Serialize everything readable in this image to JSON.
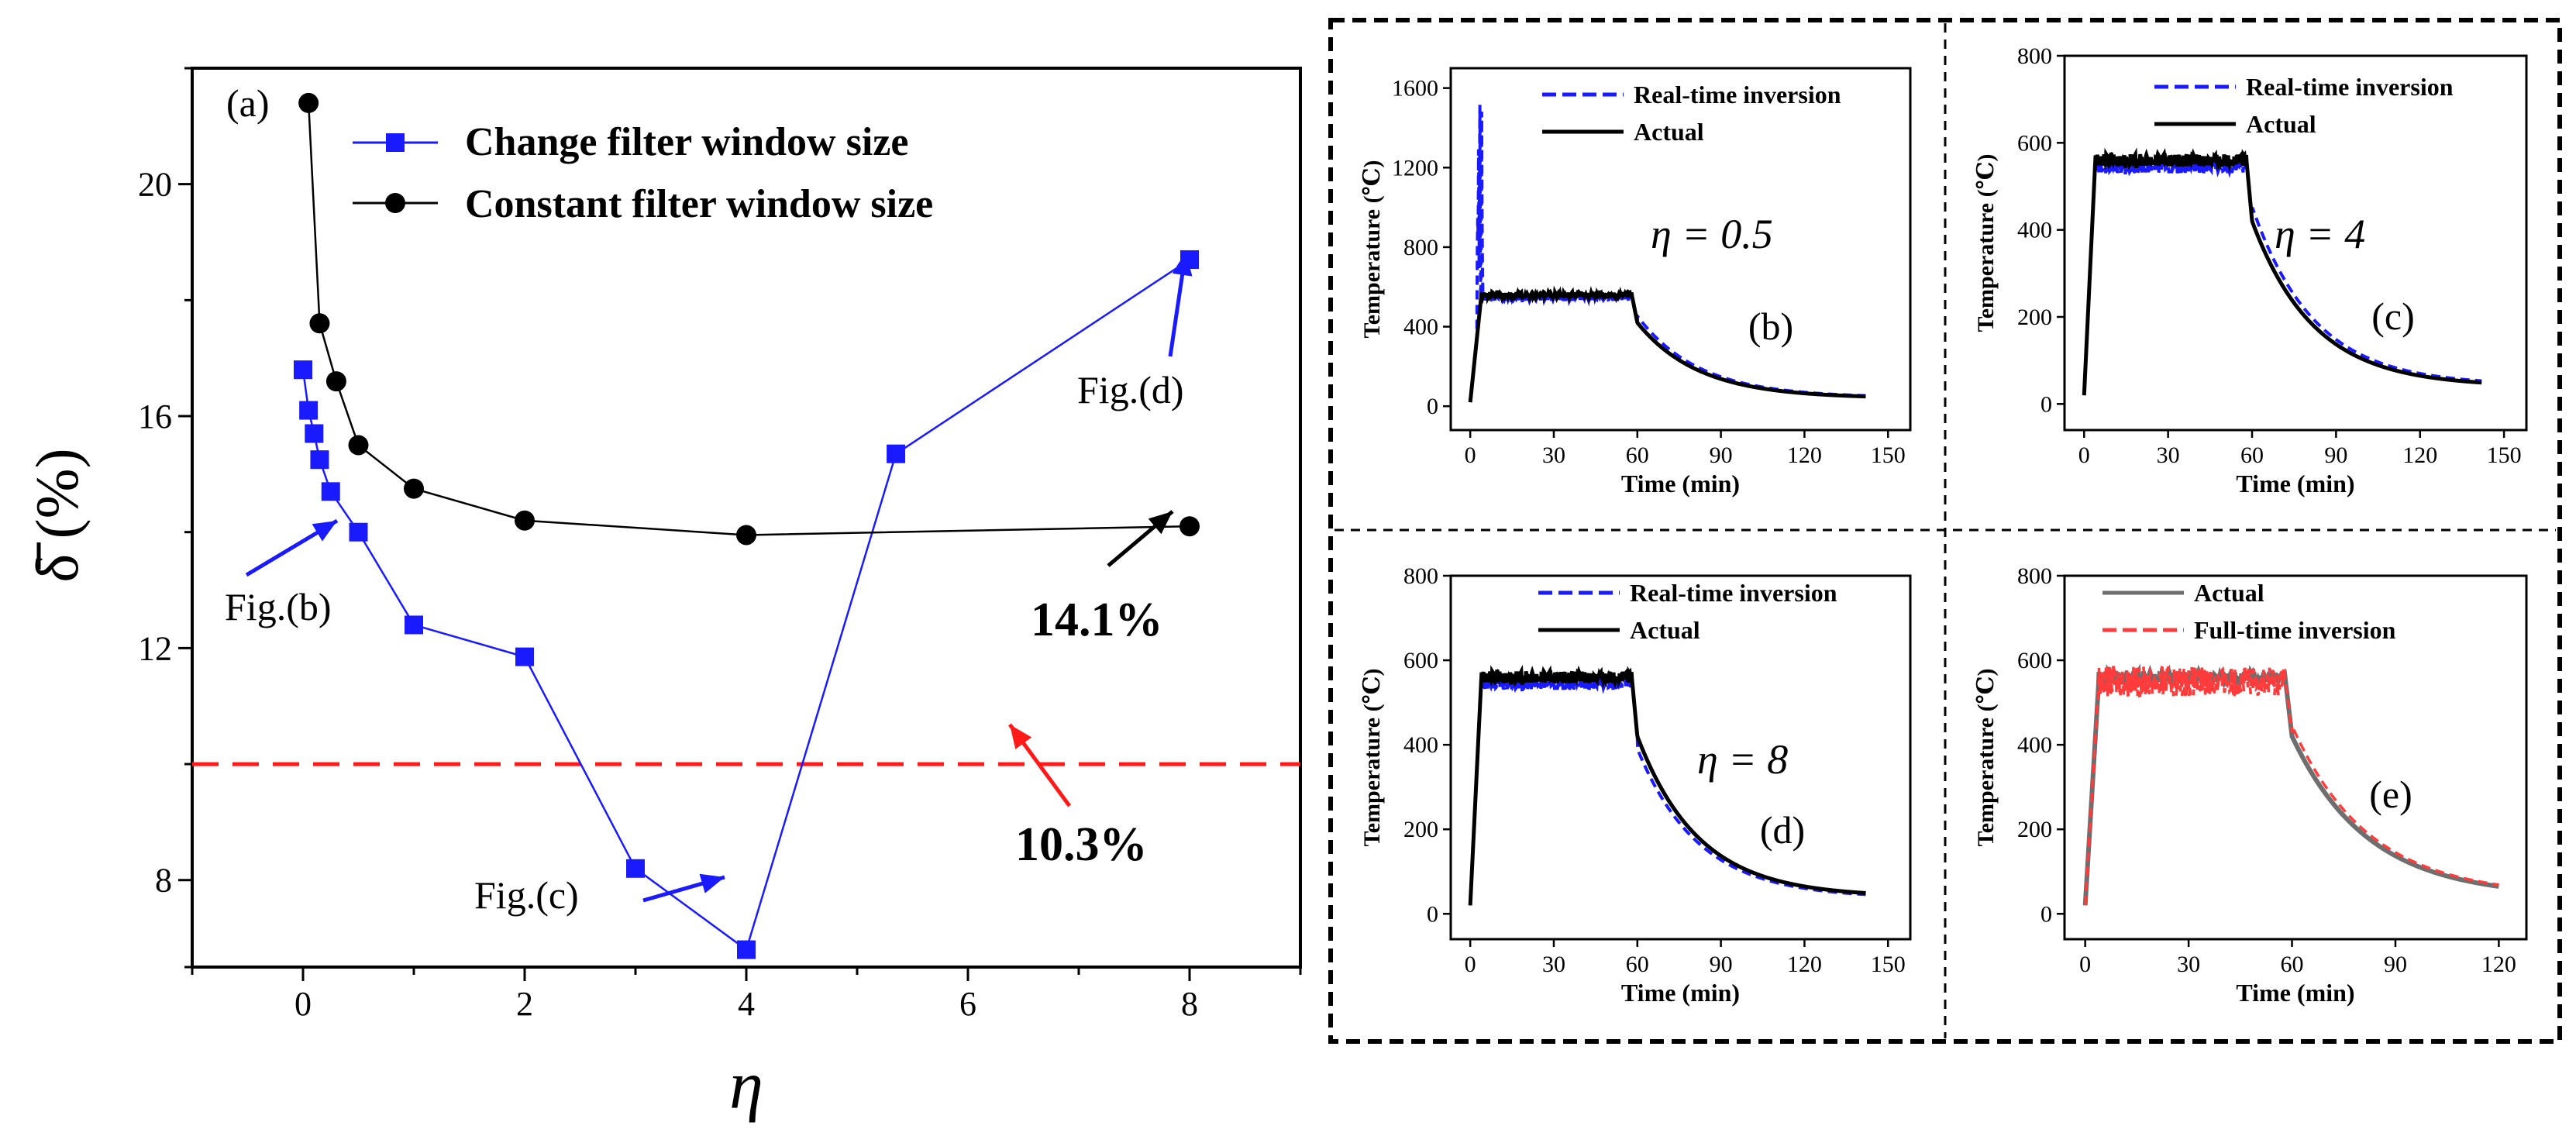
{
  "chart_data": [
    {
      "type": "line",
      "panel": "(a)",
      "xlabel": "η",
      "ylabel": "δ (%)",
      "xlim": [
        -1,
        9
      ],
      "ylim": [
        6.5,
        22
      ],
      "xticks": [
        0,
        2,
        4,
        6,
        8
      ],
      "yticks": [
        8,
        12,
        16,
        20
      ],
      "series": [
        {
          "name": "Change filter window size",
          "color": "#1a1aff",
          "x": [
            0.0,
            0.05,
            0.1,
            0.15,
            0.25,
            0.5,
            1,
            2,
            3,
            4,
            5.35,
            8
          ],
          "y": [
            16.8,
            16.1,
            15.7,
            15.25,
            14.7,
            14.0,
            12.4,
            11.85,
            8.2,
            6.8,
            15.35,
            18.7
          ]
        },
        {
          "name": "Constant filter window size",
          "color": "#000000",
          "x": [
            0.05,
            0.15,
            0.3,
            0.5,
            1,
            2,
            4,
            8
          ],
          "y": [
            21.4,
            17.6,
            16.6,
            15.5,
            14.75,
            14.2,
            13.95,
            14.1
          ]
        }
      ],
      "hline": {
        "y": 10.0,
        "color": "#ff1a1a"
      },
      "annotations": [
        "Fig.(b)",
        "Fig.(c)",
        "Fig.(d)",
        "14.1%",
        "10.3%"
      ]
    },
    {
      "type": "line",
      "panel": "(b)",
      "eta": "η = 0.5",
      "xlabel": "Time (min)",
      "ylabel": "Temperature (℃)",
      "xlim": [
        -7,
        158
      ],
      "ylim": [
        -120,
        1700
      ],
      "xticks": [
        0,
        30,
        60,
        90,
        120,
        150
      ],
      "yticks": [
        0,
        400,
        800,
        1200,
        1600
      ],
      "series": [
        {
          "name": "Real-time inversion",
          "color": "#1a1aff",
          "style": "dashed"
        },
        {
          "name": "Actual",
          "color": "#000000",
          "style": "solid"
        }
      ]
    },
    {
      "type": "line",
      "panel": "(c)",
      "eta": "η = 4",
      "xlabel": "Time (min)",
      "ylabel": "Temperature (℃)",
      "xlim": [
        -7,
        158
      ],
      "ylim": [
        -60,
        800
      ],
      "xticks": [
        0,
        30,
        60,
        90,
        120,
        150
      ],
      "yticks": [
        0,
        200,
        400,
        600,
        800
      ],
      "series": [
        {
          "name": "Real-time inversion",
          "color": "#1a1aff",
          "style": "dashed"
        },
        {
          "name": "Actual",
          "color": "#000000",
          "style": "solid"
        }
      ]
    },
    {
      "type": "line",
      "panel": "(d)",
      "eta": "η = 8",
      "xlabel": "Time (min)",
      "ylabel": "Temperature (℃)",
      "xlim": [
        -7,
        158
      ],
      "ylim": [
        -60,
        800
      ],
      "xticks": [
        0,
        30,
        60,
        90,
        120,
        150
      ],
      "yticks": [
        0,
        200,
        400,
        600,
        800
      ],
      "series": [
        {
          "name": "Real-time inversion",
          "color": "#1a1aff",
          "style": "dashed"
        },
        {
          "name": "Actual",
          "color": "#000000",
          "style": "solid"
        }
      ]
    },
    {
      "type": "line",
      "panel": "(e)",
      "eta": "",
      "xlabel": "Time (min)",
      "ylabel": "Temperature (℃)",
      "xlim": [
        -6,
        128
      ],
      "ylim": [
        -60,
        800
      ],
      "xticks": [
        0,
        30,
        60,
        90,
        120
      ],
      "yticks": [
        0,
        200,
        400,
        600,
        800
      ],
      "series": [
        {
          "name": "Actual",
          "color": "#6e6e6e",
          "style": "solid"
        },
        {
          "name": "Full-time inversion",
          "color": "#ff3b3b",
          "style": "dashed"
        }
      ]
    }
  ]
}
